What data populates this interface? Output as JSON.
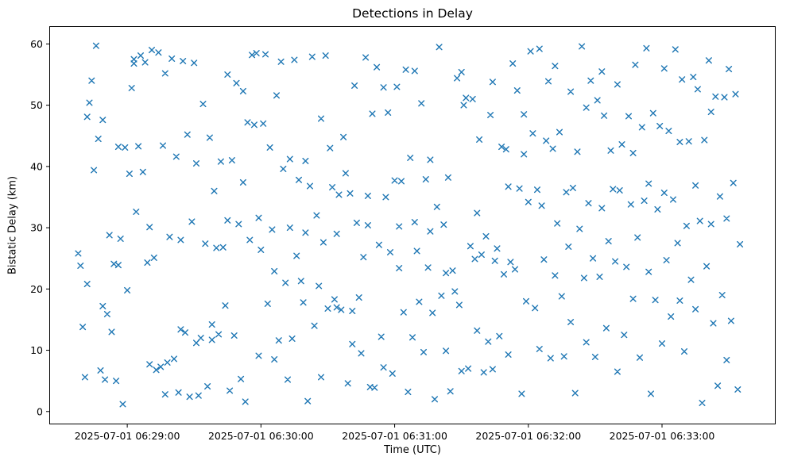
{
  "chart_data": {
    "type": "scatter",
    "title": "Detections in Delay",
    "xlabel": "Time (UTC)",
    "ylabel": "Bistatic Delay (km)",
    "marker": "x",
    "marker_color": "#1f77b4",
    "grid": false,
    "legend": "none",
    "x_axis": {
      "seconds_origin": "2025-07-01 06:28:00",
      "range_seconds": [
        25,
        351
      ],
      "ticks": [
        {
          "seconds": 60,
          "label": "2025-07-01 06:29:00"
        },
        {
          "seconds": 120,
          "label": "2025-07-01 06:30:00"
        },
        {
          "seconds": 180,
          "label": "2025-07-01 06:31:00"
        },
        {
          "seconds": 240,
          "label": "2025-07-01 06:32:00"
        },
        {
          "seconds": 300,
          "label": "2025-07-01 06:33:00"
        }
      ]
    },
    "y_axis": {
      "range": [
        -2.1,
        62.9
      ],
      "ticks": [
        0,
        10,
        20,
        30,
        40,
        50,
        60
      ]
    },
    "points": [
      [
        38,
        25.8
      ],
      [
        39,
        23.8
      ],
      [
        40,
        13.8
      ],
      [
        41,
        5.6
      ],
      [
        42,
        48.1
      ],
      [
        42,
        20.8
      ],
      [
        43,
        50.4
      ],
      [
        44,
        54.0
      ],
      [
        45,
        39.4
      ],
      [
        46,
        59.7
      ],
      [
        47,
        44.5
      ],
      [
        48,
        6.7
      ],
      [
        49,
        47.6
      ],
      [
        49,
        17.2
      ],
      [
        50,
        5.2
      ],
      [
        51,
        15.9
      ],
      [
        52,
        28.8
      ],
      [
        53,
        13.0
      ],
      [
        54,
        24.1
      ],
      [
        55,
        5.0
      ],
      [
        56,
        23.9
      ],
      [
        56,
        43.2
      ],
      [
        57,
        28.2
      ],
      [
        58,
        1.2
      ],
      [
        59,
        43.1
      ],
      [
        60,
        19.8
      ],
      [
        61,
        38.8
      ],
      [
        62,
        52.8
      ],
      [
        63,
        57.5
      ],
      [
        63,
        56.8
      ],
      [
        64,
        32.6
      ],
      [
        65,
        43.3
      ],
      [
        66,
        58.1
      ],
      [
        67,
        39.1
      ],
      [
        68,
        57.0
      ],
      [
        69,
        24.3
      ],
      [
        70,
        7.7
      ],
      [
        70,
        30.1
      ],
      [
        71,
        59.0
      ],
      [
        72,
        25.1
      ],
      [
        73,
        6.8
      ],
      [
        74,
        58.6
      ],
      [
        75,
        7.3
      ],
      [
        76,
        43.4
      ],
      [
        77,
        55.2
      ],
      [
        77,
        2.8
      ],
      [
        78,
        8.0
      ],
      [
        79,
        28.5
      ],
      [
        80,
        57.6
      ],
      [
        81,
        8.6
      ],
      [
        82,
        41.6
      ],
      [
        83,
        3.1
      ],
      [
        84,
        13.4
      ],
      [
        84,
        28.0
      ],
      [
        85,
        57.2
      ],
      [
        86,
        12.9
      ],
      [
        87,
        45.2
      ],
      [
        88,
        2.4
      ],
      [
        89,
        31.0
      ],
      [
        90,
        56.9
      ],
      [
        91,
        11.2
      ],
      [
        91,
        40.5
      ],
      [
        92,
        2.6
      ],
      [
        93,
        12.0
      ],
      [
        94,
        50.2
      ],
      [
        95,
        27.4
      ],
      [
        96,
        4.1
      ],
      [
        97,
        44.7
      ],
      [
        98,
        14.2
      ],
      [
        98,
        11.7
      ],
      [
        99,
        36.0
      ],
      [
        100,
        26.7
      ],
      [
        101,
        12.6
      ],
      [
        102,
        40.8
      ],
      [
        103,
        26.8
      ],
      [
        104,
        17.3
      ],
      [
        105,
        55.0
      ],
      [
        105,
        31.2
      ],
      [
        106,
        3.4
      ],
      [
        107,
        41.0
      ],
      [
        108,
        12.4
      ],
      [
        109,
        53.6
      ],
      [
        110,
        30.6
      ],
      [
        111,
        5.3
      ],
      [
        112,
        37.4
      ],
      [
        112,
        52.3
      ],
      [
        113,
        1.6
      ],
      [
        114,
        47.2
      ],
      [
        115,
        28.0
      ],
      [
        116,
        58.2
      ],
      [
        117,
        46.8
      ],
      [
        118,
        58.5
      ],
      [
        119,
        31.6
      ],
      [
        119,
        9.1
      ],
      [
        120,
        26.4
      ],
      [
        121,
        47.0
      ],
      [
        122,
        58.3
      ],
      [
        123,
        17.6
      ],
      [
        124,
        43.1
      ],
      [
        125,
        29.7
      ],
      [
        126,
        8.5
      ],
      [
        126,
        22.9
      ],
      [
        127,
        51.6
      ],
      [
        128,
        11.6
      ],
      [
        129,
        57.1
      ],
      [
        130,
        39.6
      ],
      [
        131,
        21.0
      ],
      [
        132,
        5.2
      ],
      [
        133,
        30.0
      ],
      [
        133,
        41.2
      ],
      [
        134,
        11.9
      ],
      [
        135,
        57.4
      ],
      [
        136,
        25.4
      ],
      [
        137,
        37.8
      ],
      [
        138,
        21.3
      ],
      [
        139,
        17.8
      ],
      [
        140,
        40.9
      ],
      [
        140,
        29.2
      ],
      [
        141,
        1.7
      ],
      [
        142,
        36.8
      ],
      [
        143,
        57.9
      ],
      [
        144,
        14.0
      ],
      [
        145,
        32.0
      ],
      [
        146,
        20.5
      ],
      [
        147,
        47.8
      ],
      [
        147,
        5.6
      ],
      [
        148,
        27.6
      ],
      [
        149,
        58.1
      ],
      [
        150,
        16.8
      ],
      [
        151,
        43.0
      ],
      [
        152,
        36.6
      ],
      [
        153,
        18.3
      ],
      [
        154,
        29.0
      ],
      [
        154,
        17.0
      ],
      [
        155,
        35.4
      ],
      [
        156,
        16.6
      ],
      [
        157,
        44.8
      ],
      [
        158,
        38.9
      ],
      [
        159,
        4.6
      ],
      [
        160,
        35.6
      ],
      [
        161,
        16.4
      ],
      [
        161,
        11.0
      ],
      [
        162,
        53.2
      ],
      [
        163,
        30.8
      ],
      [
        164,
        18.6
      ],
      [
        165,
        9.5
      ],
      [
        166,
        25.2
      ],
      [
        167,
        57.8
      ],
      [
        168,
        35.2
      ],
      [
        168,
        30.4
      ],
      [
        169,
        4.0
      ],
      [
        170,
        48.6
      ],
      [
        171,
        3.9
      ],
      [
        172,
        56.2
      ],
      [
        173,
        27.2
      ],
      [
        174,
        12.2
      ],
      [
        175,
        52.9
      ],
      [
        175,
        7.2
      ],
      [
        176,
        35.0
      ],
      [
        177,
        48.8
      ],
      [
        178,
        26.0
      ],
      [
        179,
        6.2
      ],
      [
        180,
        37.7
      ],
      [
        181,
        53.0
      ],
      [
        182,
        23.4
      ],
      [
        182,
        30.2
      ],
      [
        183,
        37.6
      ],
      [
        184,
        16.2
      ],
      [
        185,
        55.8
      ],
      [
        186,
        3.2
      ],
      [
        187,
        41.4
      ],
      [
        188,
        12.1
      ],
      [
        189,
        55.6
      ],
      [
        189,
        30.9
      ],
      [
        190,
        26.2
      ],
      [
        191,
        17.9
      ],
      [
        192,
        50.3
      ],
      [
        193,
        9.7
      ],
      [
        194,
        37.9
      ],
      [
        195,
        23.5
      ],
      [
        196,
        41.1
      ],
      [
        196,
        29.4
      ],
      [
        197,
        16.1
      ],
      [
        198,
        2.0
      ],
      [
        199,
        33.4
      ],
      [
        200,
        59.5
      ],
      [
        201,
        18.9
      ],
      [
        202,
        30.5
      ],
      [
        203,
        9.9
      ],
      [
        203,
        22.6
      ],
      [
        204,
        38.2
      ],
      [
        205,
        3.3
      ],
      [
        206,
        23.0
      ],
      [
        207,
        19.6
      ],
      [
        208,
        54.4
      ],
      [
        209,
        17.4
      ],
      [
        210,
        55.4
      ],
      [
        210,
        6.6
      ],
      [
        211,
        50.0
      ],
      [
        212,
        51.2
      ],
      [
        213,
        7.0
      ],
      [
        214,
        27.0
      ],
      [
        215,
        51.0
      ],
      [
        216,
        24.9
      ],
      [
        217,
        32.4
      ],
      [
        217,
        13.2
      ],
      [
        218,
        44.4
      ],
      [
        219,
        25.6
      ],
      [
        220,
        6.4
      ],
      [
        221,
        28.6
      ],
      [
        222,
        11.4
      ],
      [
        223,
        48.4
      ],
      [
        224,
        6.9
      ],
      [
        224,
        53.8
      ],
      [
        225,
        24.6
      ],
      [
        226,
        26.6
      ],
      [
        227,
        12.3
      ],
      [
        228,
        43.2
      ],
      [
        229,
        22.4
      ],
      [
        230,
        42.8
      ],
      [
        231,
        9.3
      ],
      [
        231,
        36.7
      ],
      [
        232,
        24.4
      ],
      [
        233,
        56.8
      ],
      [
        234,
        23.2
      ],
      [
        235,
        52.4
      ],
      [
        236,
        36.4
      ],
      [
        237,
        2.9
      ],
      [
        238,
        48.5
      ],
      [
        238,
        42.0
      ],
      [
        239,
        18.0
      ],
      [
        240,
        34.2
      ],
      [
        241,
        58.8
      ],
      [
        242,
        45.4
      ],
      [
        243,
        16.9
      ],
      [
        244,
        36.2
      ],
      [
        245,
        59.2
      ],
      [
        245,
        10.2
      ],
      [
        246,
        33.6
      ],
      [
        247,
        24.8
      ],
      [
        248,
        44.2
      ],
      [
        249,
        53.9
      ],
      [
        250,
        8.7
      ],
      [
        251,
        42.9
      ],
      [
        252,
        22.2
      ],
      [
        252,
        56.4
      ],
      [
        253,
        30.7
      ],
      [
        254,
        45.6
      ],
      [
        255,
        18.8
      ],
      [
        256,
        9.0
      ],
      [
        257,
        35.8
      ],
      [
        258,
        26.9
      ],
      [
        259,
        52.2
      ],
      [
        259,
        14.6
      ],
      [
        260,
        36.5
      ],
      [
        261,
        3.0
      ],
      [
        262,
        42.4
      ],
      [
        263,
        29.8
      ],
      [
        264,
        59.6
      ],
      [
        265,
        21.8
      ],
      [
        266,
        49.6
      ],
      [
        266,
        11.3
      ],
      [
        267,
        34.0
      ],
      [
        268,
        54.0
      ],
      [
        269,
        25.0
      ],
      [
        270,
        8.9
      ],
      [
        271,
        50.8
      ],
      [
        272,
        22.0
      ],
      [
        273,
        55.5
      ],
      [
        273,
        33.2
      ],
      [
        274,
        48.3
      ],
      [
        275,
        13.6
      ],
      [
        276,
        27.8
      ],
      [
        277,
        42.6
      ],
      [
        278,
        36.3
      ],
      [
        279,
        24.5
      ],
      [
        280,
        53.4
      ],
      [
        280,
        6.5
      ],
      [
        281,
        36.1
      ],
      [
        282,
        43.6
      ],
      [
        283,
        12.5
      ],
      [
        284,
        23.6
      ],
      [
        285,
        48.2
      ],
      [
        286,
        33.8
      ],
      [
        287,
        18.4
      ],
      [
        287,
        42.2
      ],
      [
        288,
        56.6
      ],
      [
        289,
        28.4
      ],
      [
        290,
        8.8
      ],
      [
        291,
        46.4
      ],
      [
        292,
        34.4
      ],
      [
        293,
        59.3
      ],
      [
        294,
        22.8
      ],
      [
        294,
        37.2
      ],
      [
        295,
        2.9
      ],
      [
        296,
        48.7
      ],
      [
        297,
        18.2
      ],
      [
        298,
        33.0
      ],
      [
        299,
        46.6
      ],
      [
        300,
        11.1
      ],
      [
        301,
        35.7
      ],
      [
        301,
        56.0
      ],
      [
        302,
        24.7
      ],
      [
        303,
        45.8
      ],
      [
        304,
        15.5
      ],
      [
        305,
        34.6
      ],
      [
        306,
        59.1
      ],
      [
        307,
        27.5
      ],
      [
        308,
        44.0
      ],
      [
        308,
        18.1
      ],
      [
        309,
        54.2
      ],
      [
        310,
        9.8
      ],
      [
        311,
        30.3
      ],
      [
        312,
        44.1
      ],
      [
        313,
        21.5
      ],
      [
        314,
        54.6
      ],
      [
        315,
        36.9
      ],
      [
        315,
        16.7
      ],
      [
        316,
        52.6
      ],
      [
        317,
        31.1
      ],
      [
        318,
        1.4
      ],
      [
        319,
        44.3
      ],
      [
        320,
        23.7
      ],
      [
        321,
        57.3
      ],
      [
        322,
        30.6
      ],
      [
        322,
        48.9
      ],
      [
        323,
        14.4
      ],
      [
        324,
        51.4
      ],
      [
        325,
        4.2
      ],
      [
        326,
        35.1
      ],
      [
        327,
        19.0
      ],
      [
        328,
        51.3
      ],
      [
        329,
        8.4
      ],
      [
        329,
        31.5
      ],
      [
        330,
        55.9
      ],
      [
        331,
        14.8
      ],
      [
        332,
        37.3
      ],
      [
        333,
        51.8
      ],
      [
        334,
        3.6
      ],
      [
        335,
        27.3
      ]
    ]
  }
}
